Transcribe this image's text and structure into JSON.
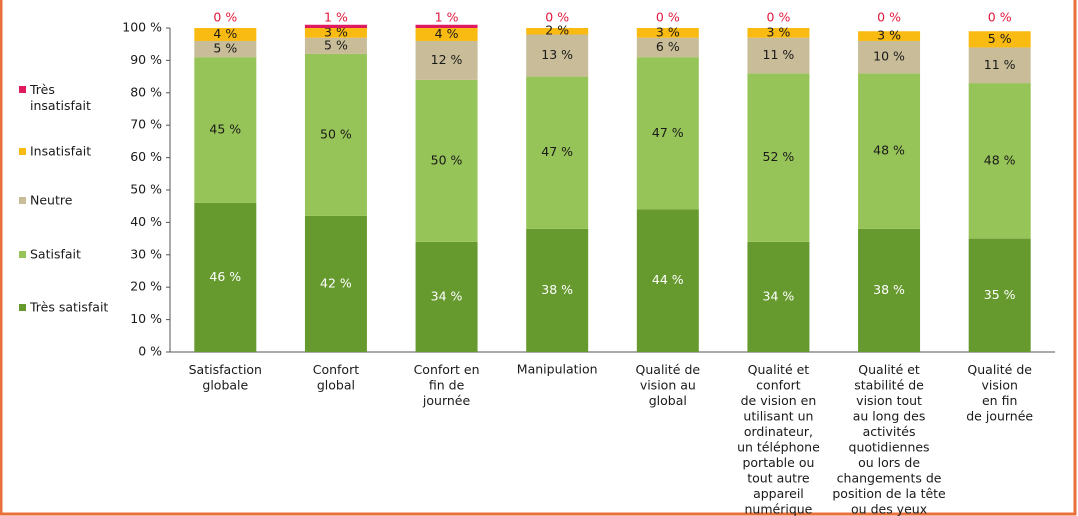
{
  "chart_data": {
    "type": "stacked-bar",
    "categories": [
      "Satisfaction\nglobale",
      "Confort\nglobal",
      "Confort en\nfin de\njournée",
      "Manipulation",
      "Qualité de\nvision au\nglobal",
      "Qualité et\nconfort\nde vision en\nutilisant un\nordinateur,\nun téléphone\nportable ou\ntout autre\nappareil\nnumérique",
      "Qualité et\nstabilité de\nvision tout\nau long des\nactivités\nquotidiennes\nou lors de\nchangements de\nposition de la tête\nou des yeux",
      "Qualité de\nvision\nen fin\nde journée"
    ],
    "series": [
      {
        "name": "Très satisfait",
        "color": "#669a2f",
        "values": [
          46,
          42,
          34,
          38,
          44,
          34,
          38,
          35
        ],
        "value_labels": [
          "46 %",
          "42 %",
          "34 %",
          "38 %",
          "44 %",
          "34 %",
          "38 %",
          "35 %"
        ]
      },
      {
        "name": "Satisfait",
        "color": "#97c458",
        "values": [
          45,
          50,
          50,
          47,
          47,
          52,
          48,
          48
        ],
        "value_labels": [
          "45 %",
          "50 %",
          "50 %",
          "47 %",
          "47 %",
          "52 %",
          "48 %",
          "48 %"
        ]
      },
      {
        "name": "Neutre",
        "color": "#c8bd98",
        "values": [
          5,
          5,
          12,
          13,
          6,
          11,
          10,
          11
        ],
        "value_labels": [
          "5 %",
          "5 %",
          "12 %",
          "13 %",
          "6 %",
          "11 %",
          "10 %",
          "11 %"
        ]
      },
      {
        "name": "Insatisfait",
        "color": "#f9ba12",
        "values": [
          4,
          3,
          4,
          2,
          3,
          3,
          3,
          5
        ],
        "value_labels": [
          "4 %",
          "3 %",
          "4 %",
          "2 %",
          "3 %",
          "3 %",
          "3 %",
          "5 %"
        ]
      },
      {
        "name": "Très\ninsatisfait",
        "color": "#df1a5e",
        "values": [
          0,
          1,
          1,
          0,
          0,
          0,
          0,
          0
        ],
        "value_labels": [
          "0 %",
          "1 %",
          "1 %",
          "0 %",
          "0 %",
          "0 %",
          "0 %",
          "0 %"
        ]
      }
    ],
    "ylim": [
      0,
      100
    ],
    "yticks": [
      {
        "value": 0,
        "label": "0 %"
      },
      {
        "value": 10,
        "label": "10 %"
      },
      {
        "value": 20,
        "label": "20 %"
      },
      {
        "value": 30,
        "label": "30 %"
      },
      {
        "value": 40,
        "label": "40 %"
      },
      {
        "value": 50,
        "label": "50 %"
      },
      {
        "value": 60,
        "label": "60 %"
      },
      {
        "value": 70,
        "label": "70 %"
      },
      {
        "value": 80,
        "label": "80 %"
      },
      {
        "value": 90,
        "label": "90 %"
      },
      {
        "value": 100,
        "label": "100 %"
      }
    ]
  }
}
